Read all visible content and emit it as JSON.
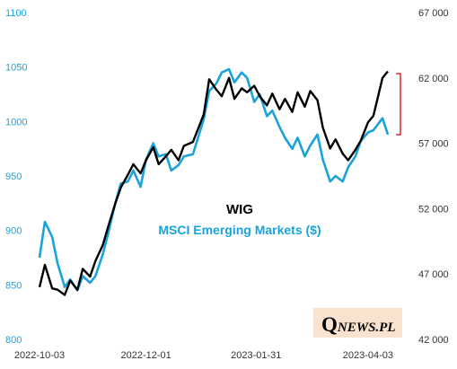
{
  "chart_data": {
    "type": "line",
    "title": "",
    "x_tick_labels": [
      "2022-10-03",
      "2022-12-01",
      "2023-01-31",
      "2023-04-03"
    ],
    "x_range": [
      "2022-10-03",
      "2023-04-14"
    ],
    "left_axis": {
      "ticks": [
        "1100",
        "1050",
        "1000",
        "950",
        "900",
        "850",
        "800"
      ],
      "ylim": [
        800,
        1100
      ],
      "color": "#1aa3d9"
    },
    "right_axis": {
      "ticks": [
        "67 000",
        "62 000",
        "57 000",
        "52 000",
        "47 000",
        "42 000"
      ],
      "ylim": [
        42000,
        67000
      ],
      "color": "#333333"
    },
    "grid": false,
    "series": [
      {
        "name": "WIG",
        "axis": "right",
        "color": "#000000",
        "points": [
          [
            "2022-10-03",
            46000
          ],
          [
            "2022-10-06",
            47700
          ],
          [
            "2022-10-10",
            45900
          ],
          [
            "2022-10-13",
            45800
          ],
          [
            "2022-10-17",
            45400
          ],
          [
            "2022-10-20",
            46500
          ],
          [
            "2022-10-24",
            45800
          ],
          [
            "2022-10-27",
            47400
          ],
          [
            "2022-10-31",
            46800
          ],
          [
            "2022-11-03",
            48000
          ],
          [
            "2022-11-07",
            49200
          ],
          [
            "2022-11-10",
            50600
          ],
          [
            "2022-11-14",
            52400
          ],
          [
            "2022-11-17",
            53600
          ],
          [
            "2022-11-21",
            54600
          ],
          [
            "2022-11-24",
            55400
          ],
          [
            "2022-11-28",
            54700
          ],
          [
            "2022-12-01",
            55700
          ],
          [
            "2022-12-05",
            56700
          ],
          [
            "2022-12-08",
            55400
          ],
          [
            "2022-12-12",
            56000
          ],
          [
            "2022-12-15",
            56500
          ],
          [
            "2022-12-19",
            55700
          ],
          [
            "2022-12-22",
            56800
          ],
          [
            "2022-12-27",
            57100
          ],
          [
            "2023-01-02",
            59200
          ],
          [
            "2023-01-05",
            61900
          ],
          [
            "2023-01-09",
            61100
          ],
          [
            "2023-01-12",
            60600
          ],
          [
            "2023-01-16",
            62000
          ],
          [
            "2023-01-19",
            60400
          ],
          [
            "2023-01-23",
            61200
          ],
          [
            "2023-01-26",
            60900
          ],
          [
            "2023-01-30",
            61400
          ],
          [
            "2023-02-02",
            60600
          ],
          [
            "2023-02-06",
            59900
          ],
          [
            "2023-02-09",
            60800
          ],
          [
            "2023-02-13",
            59600
          ],
          [
            "2023-02-16",
            60400
          ],
          [
            "2023-02-20",
            59400
          ],
          [
            "2023-02-23",
            60900
          ],
          [
            "2023-02-27",
            59800
          ],
          [
            "2023-03-02",
            61000
          ],
          [
            "2023-03-06",
            60300
          ],
          [
            "2023-03-09",
            58200
          ],
          [
            "2023-03-13",
            56600
          ],
          [
            "2023-03-16",
            57300
          ],
          [
            "2023-03-20",
            56200
          ],
          [
            "2023-03-23",
            55700
          ],
          [
            "2023-03-27",
            56500
          ],
          [
            "2023-03-30",
            57200
          ],
          [
            "2023-04-03",
            58600
          ],
          [
            "2023-04-06",
            59100
          ],
          [
            "2023-04-11",
            62000
          ],
          [
            "2023-04-14",
            62500
          ]
        ]
      },
      {
        "name": "MSCI Emerging Markets ($)",
        "axis": "left",
        "color": "#1aa3d9",
        "points": [
          [
            "2022-10-03",
            875
          ],
          [
            "2022-10-06",
            908
          ],
          [
            "2022-10-10",
            894
          ],
          [
            "2022-10-13",
            870
          ],
          [
            "2022-10-17",
            848
          ],
          [
            "2022-10-20",
            855
          ],
          [
            "2022-10-24",
            845
          ],
          [
            "2022-10-27",
            858
          ],
          [
            "2022-10-31",
            852
          ],
          [
            "2022-11-03",
            858
          ],
          [
            "2022-11-07",
            878
          ],
          [
            "2022-11-10",
            897
          ],
          [
            "2022-11-14",
            925
          ],
          [
            "2022-11-17",
            943
          ],
          [
            "2022-11-21",
            945
          ],
          [
            "2022-11-24",
            955
          ],
          [
            "2022-11-28",
            940
          ],
          [
            "2022-12-01",
            965
          ],
          [
            "2022-12-05",
            980
          ],
          [
            "2022-12-08",
            968
          ],
          [
            "2022-12-12",
            970
          ],
          [
            "2022-12-15",
            955
          ],
          [
            "2022-12-19",
            960
          ],
          [
            "2022-12-22",
            968
          ],
          [
            "2022-12-27",
            970
          ],
          [
            "2023-01-02",
            1002
          ],
          [
            "2023-01-05",
            1028
          ],
          [
            "2023-01-09",
            1035
          ],
          [
            "2023-01-12",
            1045
          ],
          [
            "2023-01-16",
            1048
          ],
          [
            "2023-01-19",
            1036
          ],
          [
            "2023-01-23",
            1045
          ],
          [
            "2023-01-26",
            1040
          ],
          [
            "2023-01-30",
            1018
          ],
          [
            "2023-02-02",
            1025
          ],
          [
            "2023-02-06",
            1005
          ],
          [
            "2023-02-09",
            1010
          ],
          [
            "2023-02-13",
            995
          ],
          [
            "2023-02-16",
            985
          ],
          [
            "2023-02-20",
            975
          ],
          [
            "2023-02-23",
            985
          ],
          [
            "2023-02-27",
            968
          ],
          [
            "2023-03-02",
            978
          ],
          [
            "2023-03-06",
            988
          ],
          [
            "2023-03-09",
            965
          ],
          [
            "2023-03-13",
            945
          ],
          [
            "2023-03-16",
            950
          ],
          [
            "2023-03-20",
            945
          ],
          [
            "2023-03-23",
            958
          ],
          [
            "2023-03-27",
            968
          ],
          [
            "2023-03-30",
            982
          ],
          [
            "2023-04-03",
            990
          ],
          [
            "2023-04-06",
            992
          ],
          [
            "2023-04-11",
            1003
          ],
          [
            "2023-04-14",
            988
          ]
        ]
      }
    ],
    "labels": {
      "wig": "WIG",
      "msci": "MSCI Emerging Markets ($)"
    },
    "annotation_color": "#e0232e"
  },
  "logo": {
    "initial": "Q",
    "rest": "NEWS.PL"
  }
}
